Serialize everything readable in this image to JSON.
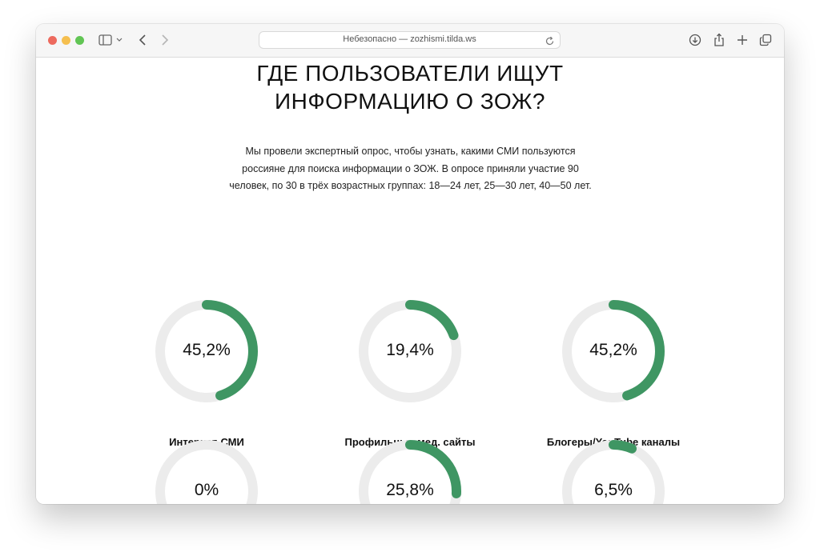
{
  "browser": {
    "url_text": "Небезопасно — zozhismi.tilda.ws"
  },
  "page": {
    "headline_line1": "ГДЕ ПОЛЬЗОВАТЕЛИ ИЩУТ",
    "headline_line2": "ИНФОРМАЦИЮ О ЗОЖ?",
    "intro": "Мы провели экспертный опрос, чтобы узнать, какими СМИ пользуются россияне для поиска информации о ЗОЖ. В опросе приняли участие 90 человек, по 30 в трёх возрастных группах: 18—24 лет, 25—30 лет, 40—50 лет."
  },
  "colors": {
    "accent": "#3f9663",
    "track": "#ececec"
  },
  "chart_data": {
    "type": "donut",
    "items": [
      {
        "value_text": "45,2%",
        "fraction": 0.452,
        "label": "Интернет-СМИ"
      },
      {
        "value_text": "19,4%",
        "fraction": 0.194,
        "label": "Профильные мед. сайты"
      },
      {
        "value_text": "45,2%",
        "fraction": 0.452,
        "label": "Блогеры/YouTube каналы"
      },
      {
        "value_text": "0%",
        "fraction": 0.0,
        "label": ""
      },
      {
        "value_text": "25,8%",
        "fraction": 0.258,
        "label": ""
      },
      {
        "value_text": "6,5%",
        "fraction": 0.065,
        "label": ""
      }
    ]
  }
}
